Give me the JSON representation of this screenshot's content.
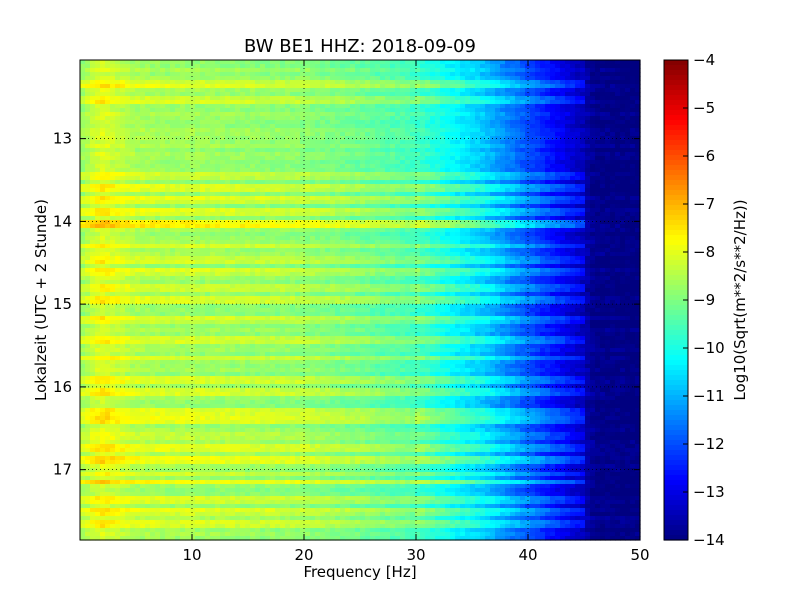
{
  "chart_data": {
    "type": "heatmap",
    "title": "BW BE1 HHZ: 2018-09-09",
    "xlabel": "Frequency [Hz]",
    "ylabel": "Lokalzeit (UTC + 2 Stunde)",
    "xlim": [
      0,
      50
    ],
    "ylim": [
      12.05,
      17.85
    ],
    "y_inverted": true,
    "x_ticks": [
      10,
      20,
      30,
      40,
      50
    ],
    "x_tick_labels": [
      "10",
      "20",
      "30",
      "40",
      "50"
    ],
    "y_ticks": [
      13,
      14,
      15,
      16,
      17
    ],
    "y_tick_labels": [
      "13",
      "14",
      "15",
      "16",
      "17"
    ],
    "grid": true,
    "colormap": "jet",
    "colorbar": {
      "label": "Log10(Sqrt(m**2/s**2/Hz))",
      "range": [
        -14,
        -4
      ],
      "ticks": [
        -4,
        -5,
        -6,
        -7,
        -8,
        -9,
        -10,
        -11,
        -12,
        -13,
        -14
      ],
      "tick_labels": [
        "−4",
        "−5",
        "−6",
        "−7",
        "−8",
        "−9",
        "−10",
        "−11",
        "−12",
        "−13",
        "−14"
      ]
    },
    "spectrum_profile": {
      "frequency_hz": [
        0,
        1,
        2,
        3,
        5,
        8,
        10,
        15,
        20,
        25,
        30,
        32,
        34,
        36,
        38,
        40,
        42,
        44,
        45,
        46,
        50
      ],
      "log10_amplitude": [
        -8.8,
        -8.4,
        -8.1,
        -8.3,
        -8.6,
        -8.7,
        -8.7,
        -8.8,
        -8.9,
        -9.2,
        -9.6,
        -10.0,
        -10.4,
        -10.8,
        -11.4,
        -12.0,
        -12.6,
        -13.2,
        -13.5,
        -13.9,
        -14.0
      ]
    },
    "bright_hours": [
      12.35,
      12.55,
      13.45,
      13.6,
      13.75,
      13.9,
      14.05,
      14.3,
      14.45,
      14.6,
      14.8,
      14.95,
      15.2,
      15.45,
      15.65,
      15.9,
      16.05,
      16.3,
      16.4,
      16.6,
      16.75,
      16.9,
      17.05,
      17.15,
      17.35,
      17.5,
      17.65
    ],
    "bright_boost": [
      0.6,
      0.5,
      0.5,
      0.7,
      0.6,
      0.6,
      1.0,
      0.6,
      0.5,
      0.5,
      0.6,
      0.5,
      0.5,
      0.6,
      0.5,
      0.5,
      0.5,
      0.6,
      0.8,
      0.5,
      0.6,
      0.8,
      0.6,
      0.9,
      0.5,
      0.6,
      0.5
    ]
  }
}
